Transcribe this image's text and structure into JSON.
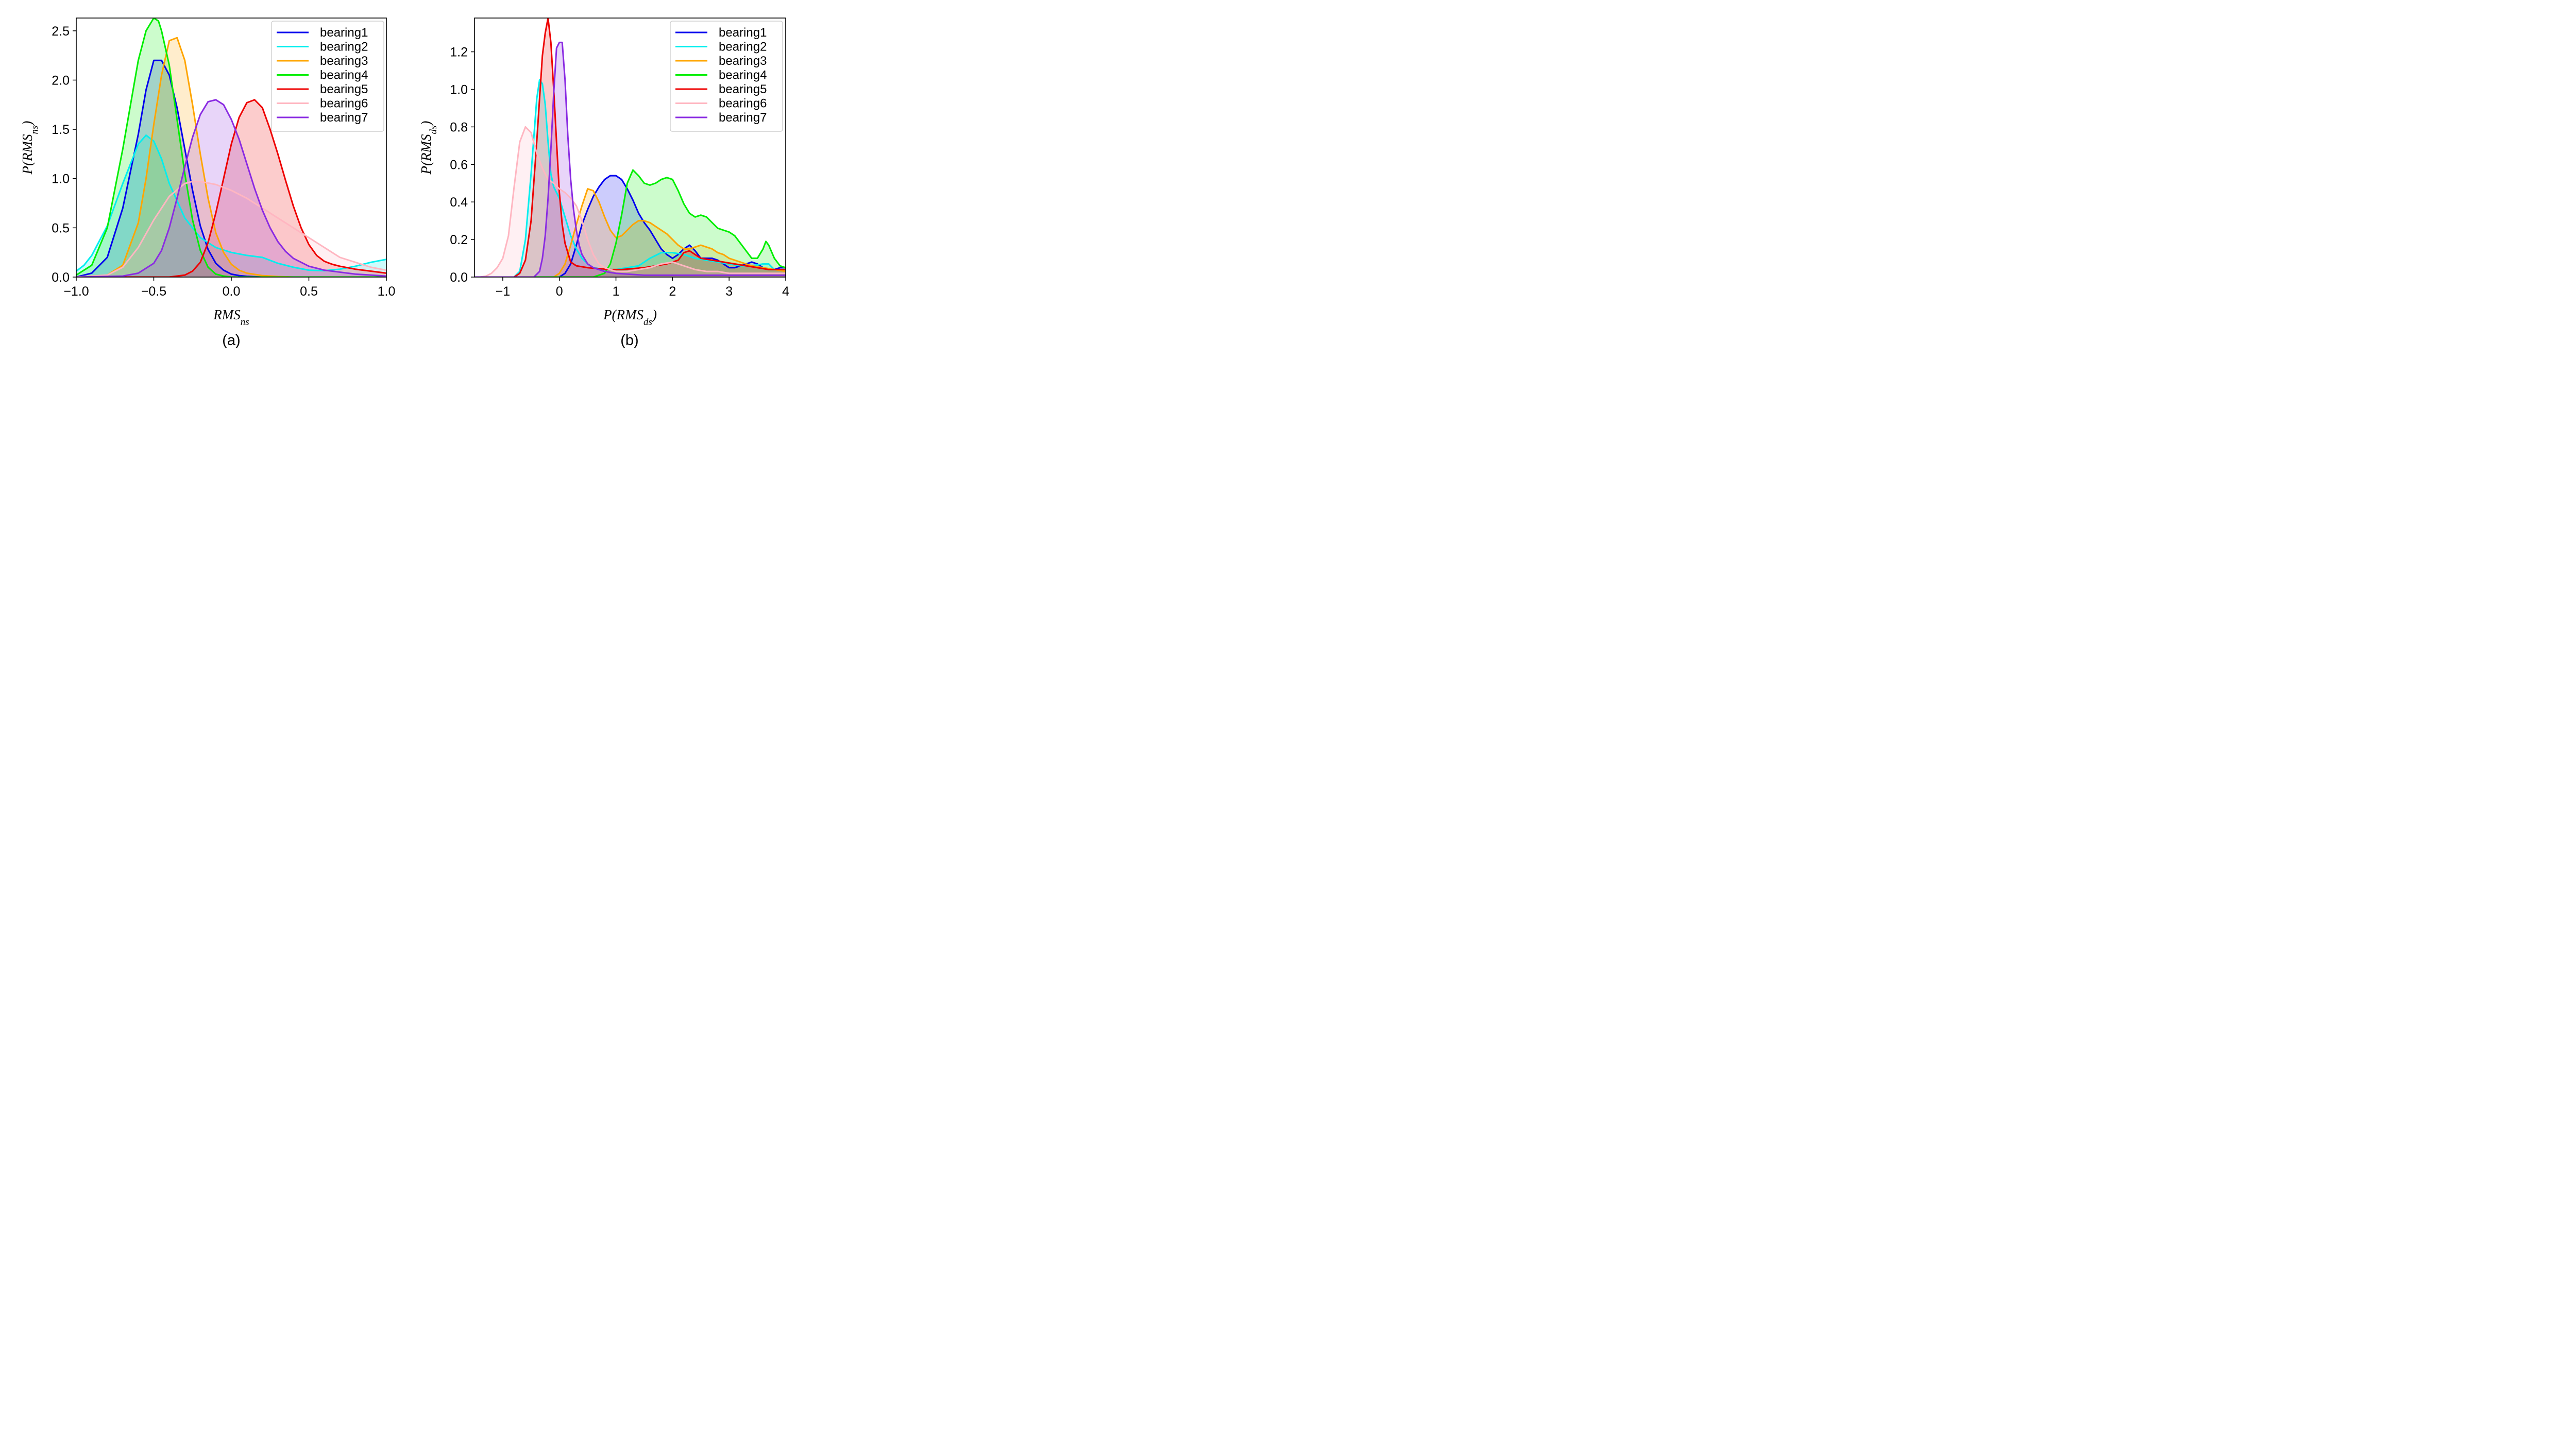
{
  "chart_data": [
    {
      "type": "area",
      "caption": "(a)",
      "xlabel": {
        "main": "RMS",
        "sub": "ns"
      },
      "ylabel": {
        "main": "P(RMS",
        "sub": "ns",
        "close": ")"
      },
      "xlim": [
        -1.0,
        1.0
      ],
      "ylim": [
        0,
        2.63
      ],
      "xticks": [
        -1.0,
        -0.5,
        0.0,
        0.5,
        1.0
      ],
      "xtick_labels": [
        "−1.0",
        "−0.5",
        "0.0",
        "0.5",
        "1.0"
      ],
      "yticks": [
        0.0,
        0.5,
        1.0,
        1.5,
        2.0,
        2.5
      ],
      "ytick_labels": [
        "0.0",
        "0.5",
        "1.0",
        "1.5",
        "2.0",
        "2.5"
      ],
      "legend_position": "top-right",
      "grid": false,
      "series": [
        {
          "name": "bearing1",
          "color": "#0000ee",
          "x": [
            -1.0,
            -0.9,
            -0.8,
            -0.7,
            -0.6,
            -0.55,
            -0.5,
            -0.45,
            -0.4,
            -0.35,
            -0.3,
            -0.25,
            -0.2,
            -0.15,
            -0.1,
            -0.05,
            0.0,
            0.05,
            0.1,
            0.2,
            0.3,
            1.0
          ],
          "y": [
            0.0,
            0.04,
            0.2,
            0.7,
            1.45,
            1.9,
            2.2,
            2.2,
            2.05,
            1.72,
            1.3,
            0.88,
            0.52,
            0.28,
            0.14,
            0.07,
            0.03,
            0.015,
            0.007,
            0.0,
            0.0,
            0.0
          ]
        },
        {
          "name": "bearing2",
          "color": "#00eeee",
          "x": [
            -1.0,
            -0.95,
            -0.9,
            -0.8,
            -0.7,
            -0.6,
            -0.55,
            -0.5,
            -0.45,
            -0.4,
            -0.3,
            -0.2,
            -0.1,
            0.0,
            0.1,
            0.2,
            0.3,
            0.4,
            0.5,
            0.6,
            0.7,
            0.8,
            0.9,
            1.0
          ],
          "y": [
            0.06,
            0.12,
            0.22,
            0.52,
            0.95,
            1.35,
            1.44,
            1.38,
            1.2,
            0.95,
            0.6,
            0.4,
            0.3,
            0.25,
            0.22,
            0.2,
            0.14,
            0.1,
            0.07,
            0.065,
            0.08,
            0.11,
            0.15,
            0.18
          ]
        },
        {
          "name": "bearing3",
          "color": "#ffa500",
          "x": [
            -1.0,
            -0.8,
            -0.7,
            -0.6,
            -0.55,
            -0.5,
            -0.45,
            -0.4,
            -0.35,
            -0.3,
            -0.25,
            -0.2,
            -0.15,
            -0.1,
            -0.05,
            0.0,
            0.05,
            0.1,
            0.2,
            0.3,
            0.4,
            1.0
          ],
          "y": [
            0.0,
            0.02,
            0.12,
            0.55,
            1.0,
            1.55,
            2.05,
            2.4,
            2.43,
            2.2,
            1.75,
            1.25,
            0.8,
            0.45,
            0.25,
            0.13,
            0.07,
            0.04,
            0.015,
            0.005,
            0.0,
            0.0
          ]
        },
        {
          "name": "bearing4",
          "color": "#00ee00",
          "x": [
            -1.0,
            -0.9,
            -0.8,
            -0.7,
            -0.65,
            -0.6,
            -0.55,
            -0.5,
            -0.47,
            -0.45,
            -0.4,
            -0.35,
            -0.3,
            -0.25,
            -0.2,
            -0.15,
            -0.1,
            -0.05,
            0.0,
            0.1,
            1.0
          ],
          "y": [
            0.02,
            0.12,
            0.5,
            1.3,
            1.75,
            2.2,
            2.5,
            2.63,
            2.6,
            2.5,
            2.15,
            1.6,
            1.05,
            0.58,
            0.27,
            0.1,
            0.03,
            0.01,
            0.0,
            0.0,
            0.0
          ]
        },
        {
          "name": "bearing5",
          "color": "#ee0000",
          "x": [
            -1.0,
            -0.4,
            -0.3,
            -0.25,
            -0.2,
            -0.15,
            -0.1,
            -0.05,
            0.0,
            0.05,
            0.1,
            0.15,
            0.2,
            0.25,
            0.3,
            0.35,
            0.4,
            0.45,
            0.5,
            0.55,
            0.6,
            0.65,
            0.7,
            0.8,
            0.9,
            1.0
          ],
          "y": [
            0.0,
            0.0,
            0.02,
            0.06,
            0.15,
            0.35,
            0.65,
            1.0,
            1.35,
            1.62,
            1.77,
            1.8,
            1.72,
            1.5,
            1.25,
            0.98,
            0.72,
            0.5,
            0.33,
            0.22,
            0.16,
            0.13,
            0.11,
            0.08,
            0.06,
            0.04
          ]
        },
        {
          "name": "bearing6",
          "color": "#ffb6c1",
          "x": [
            -1.0,
            -0.8,
            -0.7,
            -0.6,
            -0.5,
            -0.4,
            -0.3,
            -0.25,
            -0.2,
            -0.1,
            0.0,
            0.1,
            0.2,
            0.3,
            0.4,
            0.5,
            0.6,
            0.7,
            0.8,
            0.9,
            1.0
          ],
          "y": [
            0.0,
            0.02,
            0.1,
            0.3,
            0.58,
            0.82,
            0.95,
            0.97,
            0.97,
            0.94,
            0.88,
            0.8,
            0.7,
            0.6,
            0.5,
            0.4,
            0.3,
            0.2,
            0.15,
            0.1,
            0.07
          ]
        },
        {
          "name": "bearing7",
          "color": "#8a2be2",
          "x": [
            -1.0,
            -0.7,
            -0.6,
            -0.5,
            -0.45,
            -0.4,
            -0.35,
            -0.3,
            -0.25,
            -0.2,
            -0.15,
            -0.1,
            -0.05,
            0.0,
            0.05,
            0.1,
            0.15,
            0.2,
            0.25,
            0.3,
            0.35,
            0.4,
            0.5,
            0.6,
            0.7,
            0.8,
            0.9,
            1.0
          ],
          "y": [
            0.0,
            0.01,
            0.04,
            0.14,
            0.27,
            0.5,
            0.8,
            1.12,
            1.42,
            1.65,
            1.78,
            1.8,
            1.75,
            1.6,
            1.4,
            1.15,
            0.9,
            0.68,
            0.5,
            0.36,
            0.26,
            0.19,
            0.11,
            0.07,
            0.05,
            0.03,
            0.02,
            0.01
          ]
        }
      ]
    },
    {
      "type": "area",
      "caption": "(b)",
      "xlabel": {
        "main": "P(RMS",
        "sub": "ds",
        "close": ")"
      },
      "ylabel": {
        "main": "P(RMS",
        "sub": "ds",
        "close": ")"
      },
      "xlim": [
        -1.5,
        4.0
      ],
      "ylim": [
        0,
        1.38
      ],
      "xticks": [
        -1,
        0,
        1,
        2,
        3,
        4
      ],
      "xtick_labels": [
        "−1",
        "0",
        "1",
        "2",
        "3",
        "4"
      ],
      "yticks": [
        0.0,
        0.2,
        0.4,
        0.6,
        0.8,
        1.0,
        1.2
      ],
      "ytick_labels": [
        "0.0",
        "0.2",
        "0.4",
        "0.6",
        "0.8",
        "1.0",
        "1.2"
      ],
      "legend_position": "top-right",
      "grid": false,
      "series": [
        {
          "name": "bearing1",
          "color": "#0000ee",
          "x": [
            -1.5,
            0.0,
            0.1,
            0.2,
            0.3,
            0.4,
            0.5,
            0.6,
            0.7,
            0.8,
            0.9,
            1.0,
            1.1,
            1.2,
            1.3,
            1.4,
            1.5,
            1.6,
            1.7,
            1.8,
            1.9,
            2.0,
            2.1,
            2.2,
            2.3,
            2.4,
            2.5,
            2.6,
            2.7,
            2.8,
            2.9,
            3.0,
            3.1,
            3.2,
            3.3,
            3.4,
            3.5,
            3.6,
            3.7,
            3.8,
            3.9,
            4.0
          ],
          "y": [
            0.0,
            0.0,
            0.02,
            0.07,
            0.17,
            0.28,
            0.36,
            0.43,
            0.48,
            0.52,
            0.54,
            0.54,
            0.52,
            0.47,
            0.41,
            0.34,
            0.29,
            0.25,
            0.2,
            0.15,
            0.12,
            0.1,
            0.12,
            0.15,
            0.17,
            0.14,
            0.1,
            0.1,
            0.1,
            0.09,
            0.07,
            0.05,
            0.05,
            0.06,
            0.07,
            0.08,
            0.07,
            0.05,
            0.04,
            0.04,
            0.05,
            0.05
          ]
        },
        {
          "name": "bearing2",
          "color": "#00eeee",
          "x": [
            -1.5,
            -0.8,
            -0.7,
            -0.6,
            -0.5,
            -0.45,
            -0.4,
            -0.35,
            -0.3,
            -0.25,
            -0.2,
            -0.15,
            -0.1,
            -0.05,
            0.0,
            0.1,
            0.2,
            0.3,
            0.4,
            0.5,
            0.6,
            0.8,
            1.0,
            1.2,
            1.4,
            1.6,
            1.8,
            2.0,
            2.2,
            2.4,
            2.6,
            2.8,
            3.0,
            3.2,
            3.4,
            3.6,
            3.7,
            3.8,
            4.0
          ],
          "y": [
            0.0,
            0.0,
            0.03,
            0.2,
            0.55,
            0.75,
            0.95,
            1.05,
            1.03,
            0.92,
            0.72,
            0.55,
            0.48,
            0.45,
            0.42,
            0.32,
            0.22,
            0.15,
            0.1,
            0.07,
            0.05,
            0.04,
            0.04,
            0.05,
            0.06,
            0.1,
            0.13,
            0.13,
            0.12,
            0.1,
            0.09,
            0.08,
            0.07,
            0.06,
            0.06,
            0.07,
            0.07,
            0.04,
            0.03
          ]
        },
        {
          "name": "bearing3",
          "color": "#ffa500",
          "x": [
            -1.5,
            -0.1,
            0.0,
            0.1,
            0.2,
            0.3,
            0.4,
            0.5,
            0.6,
            0.7,
            0.8,
            0.9,
            1.0,
            1.1,
            1.2,
            1.3,
            1.4,
            1.5,
            1.6,
            1.7,
            1.8,
            1.9,
            2.0,
            2.1,
            2.2,
            2.3,
            2.4,
            2.5,
            2.6,
            2.7,
            2.8,
            2.9,
            3.0,
            3.1,
            3.2,
            3.3,
            3.4,
            3.6,
            3.8,
            4.0
          ],
          "y": [
            0.0,
            0.0,
            0.02,
            0.07,
            0.17,
            0.28,
            0.38,
            0.47,
            0.46,
            0.4,
            0.32,
            0.25,
            0.21,
            0.22,
            0.25,
            0.28,
            0.3,
            0.3,
            0.29,
            0.27,
            0.25,
            0.23,
            0.2,
            0.17,
            0.15,
            0.15,
            0.16,
            0.17,
            0.16,
            0.15,
            0.13,
            0.12,
            0.1,
            0.09,
            0.08,
            0.07,
            0.06,
            0.05,
            0.04,
            0.03
          ]
        },
        {
          "name": "bearing4",
          "color": "#00ee00",
          "x": [
            -1.5,
            0.6,
            0.8,
            0.9,
            1.0,
            1.1,
            1.2,
            1.3,
            1.4,
            1.5,
            1.6,
            1.7,
            1.8,
            1.9,
            2.0,
            2.1,
            2.2,
            2.3,
            2.4,
            2.5,
            2.6,
            2.7,
            2.8,
            2.9,
            3.0,
            3.1,
            3.2,
            3.3,
            3.4,
            3.5,
            3.6,
            3.65,
            3.7,
            3.8,
            3.9,
            4.0
          ],
          "y": [
            0.0,
            0.0,
            0.02,
            0.07,
            0.18,
            0.33,
            0.5,
            0.57,
            0.54,
            0.5,
            0.49,
            0.5,
            0.52,
            0.53,
            0.52,
            0.46,
            0.39,
            0.34,
            0.32,
            0.33,
            0.32,
            0.29,
            0.26,
            0.25,
            0.24,
            0.22,
            0.18,
            0.14,
            0.1,
            0.1,
            0.15,
            0.19,
            0.17,
            0.1,
            0.06,
            0.05
          ]
        },
        {
          "name": "bearing5",
          "color": "#ee0000",
          "x": [
            -1.5,
            -0.8,
            -0.7,
            -0.6,
            -0.5,
            -0.4,
            -0.3,
            -0.25,
            -0.2,
            -0.15,
            -0.1,
            -0.05,
            0.0,
            0.05,
            0.1,
            0.2,
            0.3,
            0.4,
            0.5,
            0.7,
            0.9,
            1.1,
            1.3,
            1.5,
            1.7,
            1.9,
            2.1,
            2.2,
            2.3,
            2.4,
            2.5,
            2.7,
            2.9,
            3.1,
            3.3,
            3.5,
            3.7,
            4.0
          ],
          "y": [
            0.0,
            0.0,
            0.02,
            0.09,
            0.3,
            0.72,
            1.18,
            1.3,
            1.38,
            1.25,
            1.0,
            0.72,
            0.45,
            0.28,
            0.18,
            0.08,
            0.06,
            0.055,
            0.05,
            0.045,
            0.04,
            0.04,
            0.045,
            0.05,
            0.06,
            0.07,
            0.09,
            0.13,
            0.14,
            0.12,
            0.1,
            0.09,
            0.08,
            0.07,
            0.06,
            0.05,
            0.04,
            0.04
          ]
        },
        {
          "name": "bearing6",
          "color": "#ffb6c1",
          "x": [
            -1.5,
            -1.4,
            -1.3,
            -1.2,
            -1.1,
            -1.0,
            -0.9,
            -0.8,
            -0.7,
            -0.6,
            -0.5,
            -0.4,
            -0.3,
            -0.2,
            -0.1,
            0.0,
            0.1,
            0.2,
            0.3,
            0.4,
            0.5,
            0.6,
            0.7,
            0.8,
            1.0,
            1.2,
            1.4,
            1.6,
            1.8,
            2.0,
            2.2,
            2.4,
            2.6,
            2.8,
            3.0,
            3.2,
            3.4,
            3.6,
            3.8,
            4.0
          ],
          "y": [
            0.0,
            0.0,
            0.005,
            0.02,
            0.05,
            0.1,
            0.22,
            0.48,
            0.72,
            0.8,
            0.77,
            0.66,
            0.58,
            0.52,
            0.5,
            0.47,
            0.45,
            0.42,
            0.38,
            0.3,
            0.2,
            0.12,
            0.07,
            0.05,
            0.03,
            0.03,
            0.04,
            0.05,
            0.07,
            0.08,
            0.06,
            0.04,
            0.03,
            0.03,
            0.02,
            0.02,
            0.02,
            0.02,
            0.02,
            0.02
          ]
        },
        {
          "name": "bearing7",
          "color": "#8a2be2",
          "x": [
            -1.5,
            -0.45,
            -0.35,
            -0.3,
            -0.25,
            -0.2,
            -0.15,
            -0.1,
            -0.05,
            0.0,
            0.05,
            0.1,
            0.15,
            0.2,
            0.25,
            0.3,
            0.35,
            0.4,
            0.5,
            0.6,
            0.8,
            1.0,
            1.5,
            2.0,
            2.5,
            3.0,
            3.5,
            4.0
          ],
          "y": [
            0.0,
            0.0,
            0.03,
            0.1,
            0.22,
            0.42,
            0.68,
            0.98,
            1.22,
            1.25,
            1.25,
            1.05,
            0.75,
            0.52,
            0.36,
            0.25,
            0.17,
            0.12,
            0.07,
            0.05,
            0.03,
            0.02,
            0.01,
            0.01,
            0.01,
            0.01,
            0.01,
            0.01
          ]
        }
      ]
    }
  ]
}
